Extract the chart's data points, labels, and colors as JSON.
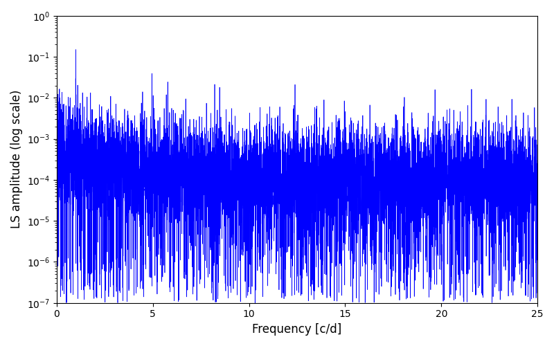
{
  "title": "",
  "xlabel": "Frequency [c/d]",
  "ylabel": "LS amplitude (log scale)",
  "xlim": [
    0,
    25
  ],
  "ylim": [
    1e-07,
    1.0
  ],
  "yscale": "log",
  "line_color": "blue",
  "line_width": 0.5,
  "figsize": [
    8.0,
    5.0
  ],
  "dpi": 100,
  "freq_min": 0.0,
  "freq_max": 25.0,
  "n_points": 8000,
  "seed": 7,
  "peak_freq": 1.0,
  "peak_amp": 0.15,
  "noise_floor_low": 0.0005,
  "noise_floor_high": 0.0001,
  "decay": 0.5
}
